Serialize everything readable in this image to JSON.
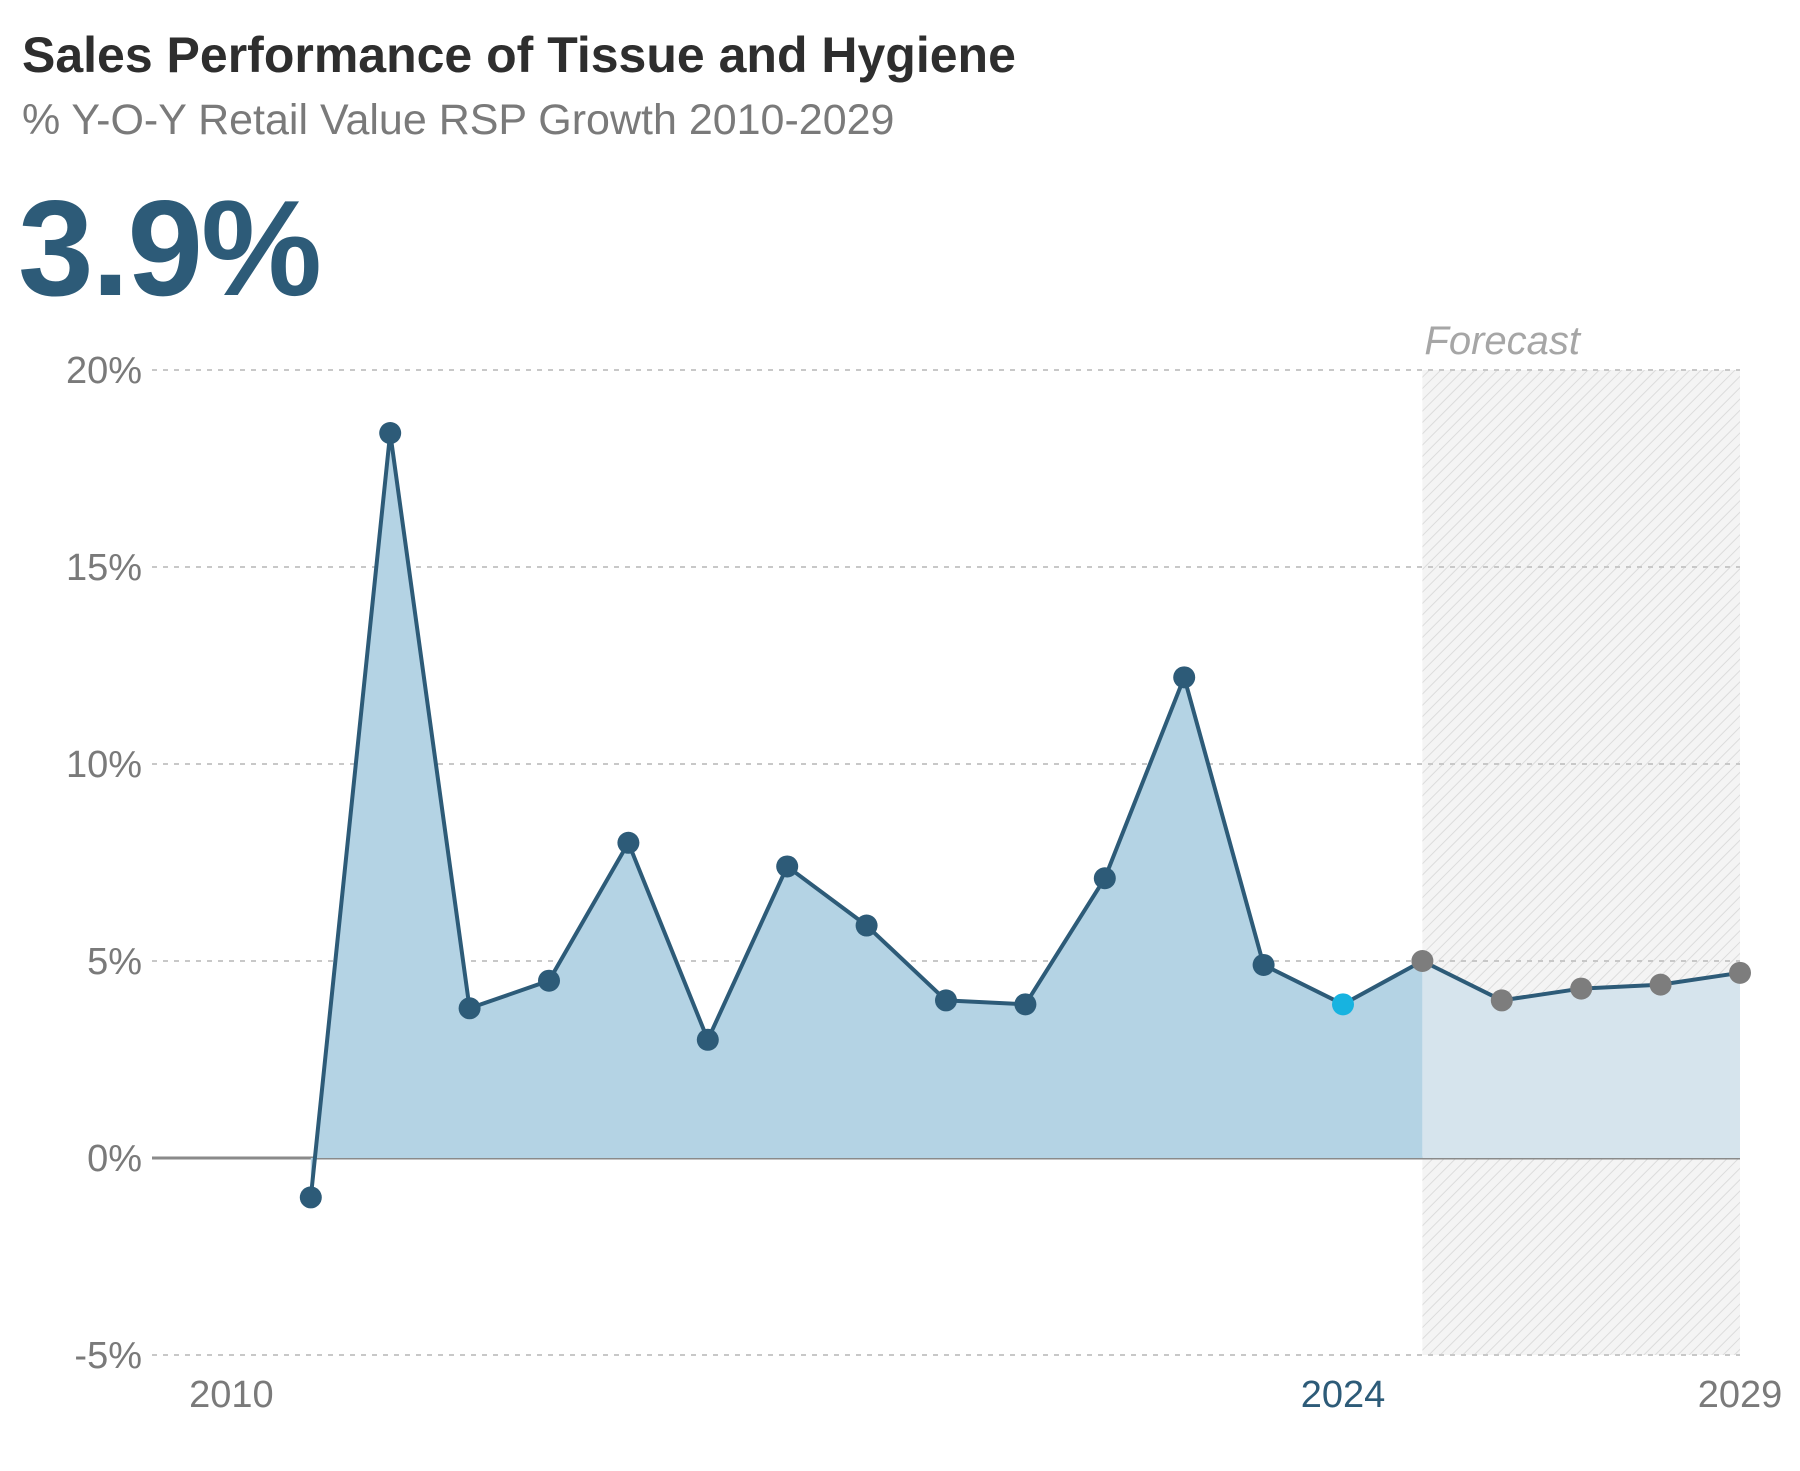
{
  "header": {
    "title": "Sales Performance of Tissue and Hygiene",
    "subtitle": "% Y-O-Y Retail Value RSP Growth 2010-2029",
    "headline_value": "3.9%"
  },
  "colors": {
    "line": "#2d5b78",
    "area_actual": "#b4d3e4",
    "area_forecast": "#d6e4ed",
    "current_point": "#17b3e0",
    "forecast_point": "#7d7d7d",
    "grid": "#c8c8c8",
    "zero_line": "#8a8a8a"
  },
  "chart_data": {
    "type": "line",
    "title": "Sales Performance of Tissue and Hygiene",
    "subtitle": "% Y-O-Y Retail Value RSP Growth 2010-2029",
    "x": [
      2011,
      2012,
      2013,
      2014,
      2015,
      2016,
      2017,
      2018,
      2019,
      2020,
      2021,
      2022,
      2023,
      2024,
      2025,
      2026,
      2027,
      2028,
      2029
    ],
    "values": [
      -1.0,
      18.4,
      3.8,
      4.5,
      8.0,
      3.0,
      7.4,
      5.9,
      4.0,
      3.9,
      7.1,
      12.2,
      4.9,
      3.9,
      5.0,
      4.0,
      4.3,
      4.4,
      4.7
    ],
    "current_year": 2024,
    "forecast_start": 2025,
    "forecast_label": "Forecast",
    "ylim": [
      -5,
      20
    ],
    "y_ticks": [
      20,
      15,
      10,
      5,
      0,
      -5
    ],
    "y_tick_labels": [
      "20%",
      "15%",
      "10%",
      "5%",
      "0%",
      "-5%"
    ],
    "x_tick_labels": [
      {
        "year": 2010,
        "label": "2010"
      },
      {
        "year": 2024,
        "label": "2024"
      },
      {
        "year": 2029,
        "label": "2029"
      }
    ],
    "xlim": [
      2009,
      2029
    ],
    "grid": true,
    "xlabel": "",
    "ylabel": ""
  }
}
